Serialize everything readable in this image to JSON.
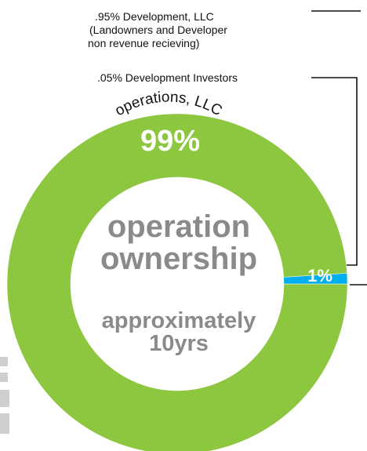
{
  "chart_data": {
    "type": "pie",
    "donut": true,
    "categories": [
      "operations, LLC",
      null
    ],
    "values": [
      99,
      1
    ],
    "value_labels": [
      "99%",
      "1%"
    ],
    "colors": [
      "#8dc63f",
      "#00aeef"
    ],
    "center_title": [
      "operation",
      "ownership"
    ],
    "center_subtitle": [
      "approximately",
      "10yrs"
    ],
    "annotations": [
      [
        ".95% Development, LLC",
        "(Landowners and Developer",
        "non revenue recieving)"
      ],
      [
        ".05% Development Investors"
      ]
    ]
  }
}
